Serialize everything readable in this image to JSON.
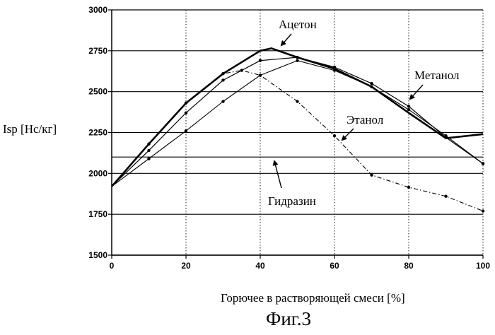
{
  "chart_data": {
    "type": "line",
    "xlabel": "Горючее в растворяющей смеси [%]",
    "ylabel": "Isp [Нс/кг]",
    "figure_caption": "Фиг.3",
    "xlim": [
      0,
      100
    ],
    "ylim": [
      1500,
      3000
    ],
    "x_ticks": [
      0,
      20,
      40,
      60,
      80,
      100
    ],
    "y_ticks": [
      1500,
      1750,
      2000,
      2250,
      2500,
      2750,
      3000
    ],
    "extra_gridlines_y": [
      2100
    ],
    "grid": true,
    "series": [
      {
        "name": "Ацетон",
        "style": "thick",
        "x": [
          0,
          10,
          20,
          30,
          40,
          43,
          50,
          60,
          70,
          80,
          90,
          100
        ],
        "y": [
          1920,
          2180,
          2430,
          2610,
          2750,
          2765,
          2710,
          2640,
          2530,
          2370,
          2215,
          2240
        ]
      },
      {
        "name": "Метанол",
        "style": "thin",
        "x": [
          0,
          10,
          20,
          30,
          40,
          50,
          60,
          70,
          80,
          90,
          100
        ],
        "y": [
          1920,
          2140,
          2370,
          2570,
          2690,
          2710,
          2650,
          2550,
          2410,
          2220,
          2060
        ]
      },
      {
        "name": "Этанол",
        "style": "thin-dotted-markers",
        "x": [
          0,
          10,
          20,
          30,
          40,
          50,
          60,
          70,
          80,
          90,
          100
        ],
        "y": [
          1920,
          2090,
          2260,
          2440,
          2600,
          2690,
          2630,
          2530,
          2390,
          2230,
          2060
        ]
      },
      {
        "name": "Гидразин",
        "style": "dash-dot",
        "x": [
          0,
          10,
          20,
          30,
          35,
          40,
          50,
          60,
          70,
          80,
          90,
          100
        ],
        "y": [
          1920,
          2180,
          2430,
          2610,
          2630,
          2600,
          2440,
          2230,
          1990,
          1915,
          1860,
          1770
        ]
      }
    ],
    "annotations": [
      {
        "text": "Ацетон",
        "series": "Ацетон"
      },
      {
        "text": "Метанол",
        "series": "Метанол"
      },
      {
        "text": "Этанол",
        "series": "Этанол"
      },
      {
        "text": "Гидразин",
        "series": "Гидразин"
      }
    ]
  }
}
